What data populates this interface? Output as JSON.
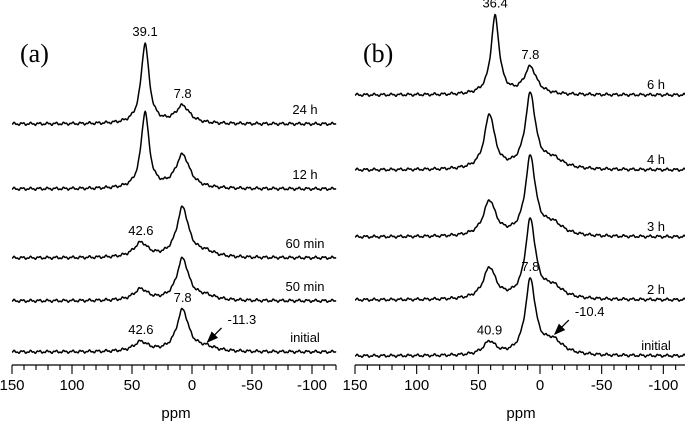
{
  "chart_data": [
    {
      "type": "line",
      "panel": "(a)",
      "xlabel": "ppm",
      "xlim": [
        150,
        -120
      ],
      "major_ticks": [
        150,
        100,
        50,
        0,
        -50,
        -100
      ],
      "tick_labels": [
        "150",
        "100",
        "50",
        "0",
        "-50",
        "-100"
      ],
      "minor_tick_step": 10,
      "series": [
        {
          "name": "24 h",
          "label": "24 h",
          "peaks": [
            {
              "ppm": 39.1,
              "height": 1.0,
              "width": 4
            },
            {
              "ppm": 7.8,
              "height": 0.22,
              "width": 7
            }
          ]
        },
        {
          "name": "12 h",
          "label": "12 h",
          "peaks": [
            {
              "ppm": 39.1,
              "height": 0.95,
              "width": 4
            },
            {
              "ppm": 7.8,
              "height": 0.42,
              "width": 7
            }
          ]
        },
        {
          "name": "60 min",
          "label": "60 min",
          "peaks": [
            {
              "ppm": 42.6,
              "height": 0.18,
              "width": 7
            },
            {
              "ppm": 7.8,
              "height": 0.62,
              "width": 6
            },
            {
              "ppm": -11.3,
              "height": 0.06,
              "width": 10
            }
          ]
        },
        {
          "name": "50 min",
          "label": "50 min",
          "peaks": [
            {
              "ppm": 42.6,
              "height": 0.14,
              "width": 7
            },
            {
              "ppm": 7.8,
              "height": 0.52,
              "width": 6
            },
            {
              "ppm": -11.3,
              "height": 0.05,
              "width": 10
            }
          ]
        },
        {
          "name": "initial",
          "label": "initial",
          "peaks": [
            {
              "ppm": 42.6,
              "height": 0.12,
              "width": 7
            },
            {
              "ppm": 7.8,
              "height": 0.52,
              "width": 6
            },
            {
              "ppm": -11.3,
              "height": 0.05,
              "width": 10
            }
          ]
        }
      ],
      "annotations": [
        {
          "text": "39.1",
          "series": "24 h",
          "ppm": 39.1
        },
        {
          "text": "7.8",
          "series": "24 h",
          "ppm": 7.8
        },
        {
          "text": "42.6",
          "series": "60 min",
          "ppm": 42.6
        },
        {
          "text": "7.8",
          "series": "initial",
          "ppm": 7.8
        },
        {
          "text": "42.6",
          "series": "initial",
          "ppm": 42.6
        },
        {
          "text": "-11.3",
          "series": "initial",
          "ppm": -11.3,
          "arrow": true
        }
      ]
    },
    {
      "type": "line",
      "panel": "(b)",
      "xlabel": "ppm",
      "xlim": [
        150,
        -120
      ],
      "major_ticks": [
        150,
        100,
        50,
        0,
        -50,
        -100
      ],
      "tick_labels": [
        "150",
        "100",
        "50",
        "0",
        "-50",
        "-100"
      ],
      "minor_tick_step": 10,
      "series": [
        {
          "name": "6 h",
          "label": "6 h",
          "peaks": [
            {
              "ppm": 36.4,
              "height": 1.0,
              "width": 4
            },
            {
              "ppm": 7.8,
              "height": 0.35,
              "width": 6
            }
          ]
        },
        {
          "name": "4 h",
          "label": "4 h",
          "peaks": [
            {
              "ppm": 40.9,
              "height": 0.7,
              "width": 5
            },
            {
              "ppm": 7.8,
              "height": 0.95,
              "width": 5
            },
            {
              "ppm": -10.4,
              "height": 0.12,
              "width": 10
            }
          ]
        },
        {
          "name": "3 h",
          "label": "3 h",
          "peaks": [
            {
              "ppm": 40.9,
              "height": 0.45,
              "width": 6
            },
            {
              "ppm": 7.8,
              "height": 1.0,
              "width": 5
            },
            {
              "ppm": -10.4,
              "height": 0.15,
              "width": 10
            }
          ]
        },
        {
          "name": "2 h",
          "label": "2 h",
          "peaks": [
            {
              "ppm": 40.9,
              "height": 0.4,
              "width": 6
            },
            {
              "ppm": 7.8,
              "height": 1.0,
              "width": 5
            },
            {
              "ppm": -10.4,
              "height": 0.15,
              "width": 10
            }
          ]
        },
        {
          "name": "initial",
          "label": "initial",
          "peaks": [
            {
              "ppm": 40.9,
              "height": 0.17,
              "width": 6
            },
            {
              "ppm": 7.8,
              "height": 0.95,
              "width": 5
            },
            {
              "ppm": -10.4,
              "height": 0.18,
              "width": 10
            }
          ]
        }
      ],
      "annotations": [
        {
          "text": "36.4",
          "series": "6 h",
          "ppm": 36.4
        },
        {
          "text": "7.8",
          "series": "6 h",
          "ppm": 7.8
        },
        {
          "text": "7.8",
          "series": "initial",
          "ppm": 7.8
        },
        {
          "text": "40.9",
          "series": "initial",
          "ppm": 40.9
        },
        {
          "text": "-10.4",
          "series": "initial",
          "ppm": -10.4,
          "arrow": true
        }
      ]
    }
  ]
}
